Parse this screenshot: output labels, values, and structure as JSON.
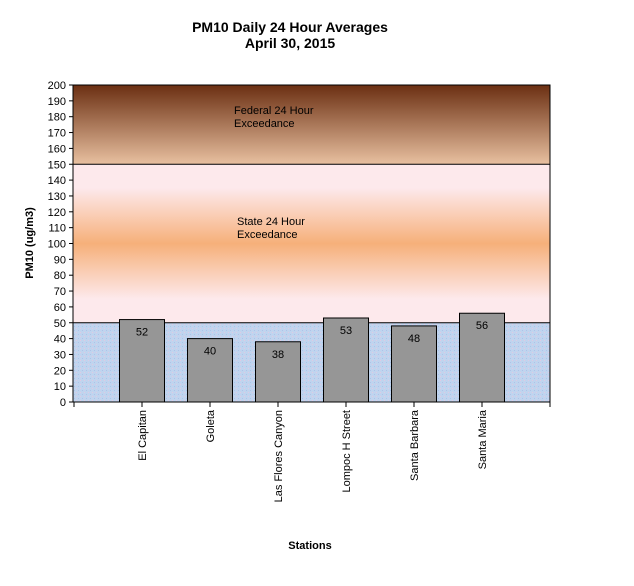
{
  "chart_data": {
    "type": "bar",
    "title": "PM10 Daily 24 Hour Averages",
    "subtitle": "April 30, 2015",
    "xlabel": "Stations",
    "ylabel": "PM10 (ug/m3)",
    "ylim": [
      0,
      200
    ],
    "ytick_step": 10,
    "categories": [
      "El Capitan",
      "Goleta",
      "Las Flores Canyon",
      "Lompoc H Street",
      "Santa Barbara",
      "Santa Maria"
    ],
    "values": [
      52,
      40,
      38,
      53,
      48,
      56
    ],
    "thresholds": [
      {
        "value": 50,
        "label_line1": "State 24 Hour",
        "label_line2": "Exceedance"
      },
      {
        "value": 150,
        "label_line1": "Federal 24 Hour",
        "label_line2": "Exceedance"
      }
    ],
    "colors": {
      "bar": "#969696",
      "federal_top": "#6b2f12",
      "federal_bottom": "#e8c0a0",
      "state_edge": "#fde9ec",
      "state_mid": "#f6b07a",
      "normal": "#c0d4ee"
    },
    "grid": false,
    "legend": "none"
  }
}
